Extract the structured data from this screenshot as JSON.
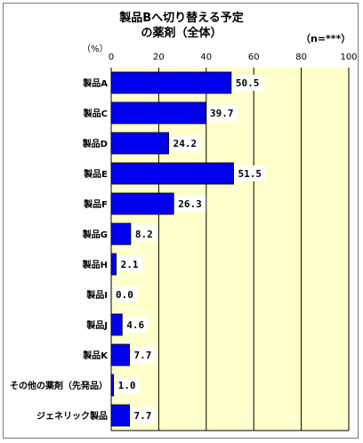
{
  "chart_data": {
    "type": "bar",
    "orientation": "horizontal",
    "title_line1": "製品Bへ切り替える予定",
    "title_line2": "の薬剤（全体）",
    "n_label": "（n=***）",
    "unit_label": "（%）",
    "xlim": [
      0,
      100
    ],
    "ticks": [
      0,
      20,
      40,
      60,
      80,
      100
    ],
    "categories": [
      "製品A",
      "製品C",
      "製品D",
      "製品E",
      "製品F",
      "製品G",
      "製品H",
      "製品I",
      "製品J",
      "製品K",
      "その他の薬剤（先発品）",
      "ジェネリック製品"
    ],
    "values": [
      50.5,
      39.7,
      24.2,
      51.5,
      26.3,
      8.2,
      2.1,
      0.0,
      4.6,
      7.7,
      1.0,
      7.7
    ],
    "value_labels": [
      "50.5",
      "39.7",
      "24.2",
      "51.5",
      "26.3",
      "8.2",
      "2.1",
      "0.0",
      "4.6",
      "7.7",
      "1.0",
      "7.7"
    ],
    "grid": true,
    "colors": {
      "bar": "#0000ee",
      "plot_bg": "#ffffcc",
      "grid": "#000000"
    }
  }
}
